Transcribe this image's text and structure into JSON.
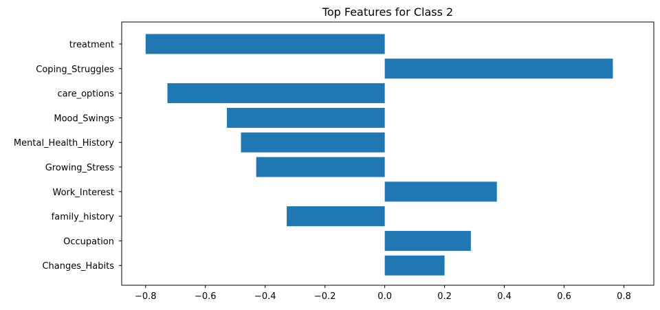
{
  "chart_data": {
    "type": "bar",
    "orientation": "horizontal",
    "title": "Top Features for Class 2",
    "xlabel": "",
    "ylabel": "",
    "xlim": [
      -0.88,
      0.9
    ],
    "grid": false,
    "legend": "none",
    "bar_color": "#1f77b4",
    "xticks": [
      -0.8,
      -0.6,
      -0.4,
      -0.2,
      0.0,
      0.2,
      0.4,
      0.6,
      0.8
    ],
    "xtick_labels": [
      "−0.8",
      "−0.6",
      "−0.4",
      "−0.2",
      "0.0",
      "0.2",
      "0.4",
      "0.6",
      "0.8"
    ],
    "categories": [
      "treatment",
      "Coping_Struggles",
      "care_options",
      "Mood_Swings",
      "Mental_Health_History",
      "Growing_Stress",
      "Work_Interest",
      "family_history",
      "Occupation",
      "Changes_Habits"
    ],
    "values": [
      -0.8,
      0.763,
      -0.727,
      -0.528,
      -0.481,
      -0.43,
      0.375,
      -0.328,
      0.288,
      0.2
    ]
  }
}
